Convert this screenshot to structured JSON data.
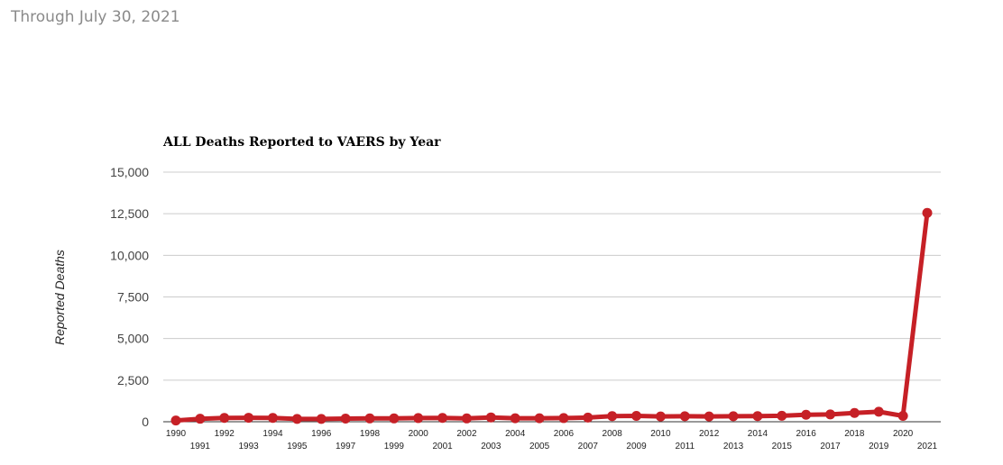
{
  "header": {
    "subtitle": "Through July 30, 2021"
  },
  "chart_data": {
    "type": "line",
    "title": "ALL Deaths Reported to VAERS by Year",
    "xlabel": "",
    "ylabel": "Reported Deaths",
    "ylim": [
      0,
      15000
    ],
    "yticks": [
      "0",
      "2,500",
      "5,000",
      "7,500",
      "10,000",
      "12,500",
      "15,000"
    ],
    "grid": true,
    "legend": "none",
    "x": [
      "1990",
      "1991",
      "1992",
      "1993",
      "1994",
      "1995",
      "1996",
      "1997",
      "1998",
      "1999",
      "2000",
      "2001",
      "2002",
      "2003",
      "2004",
      "2005",
      "2006",
      "2007",
      "2008",
      "2009",
      "2010",
      "2011",
      "2012",
      "2013",
      "2014",
      "2015",
      "2016",
      "2017",
      "2018",
      "2019",
      "2020",
      "2021"
    ],
    "series": [
      {
        "color": "#c62026",
        "values": [
          75,
          180,
          230,
          240,
          230,
          170,
          170,
          190,
          200,
          200,
          220,
          230,
          200,
          260,
          210,
          210,
          220,
          250,
          340,
          350,
          320,
          330,
          320,
          330,
          340,
          360,
          420,
          440,
          530,
          600,
          350,
          12550
        ]
      }
    ]
  }
}
